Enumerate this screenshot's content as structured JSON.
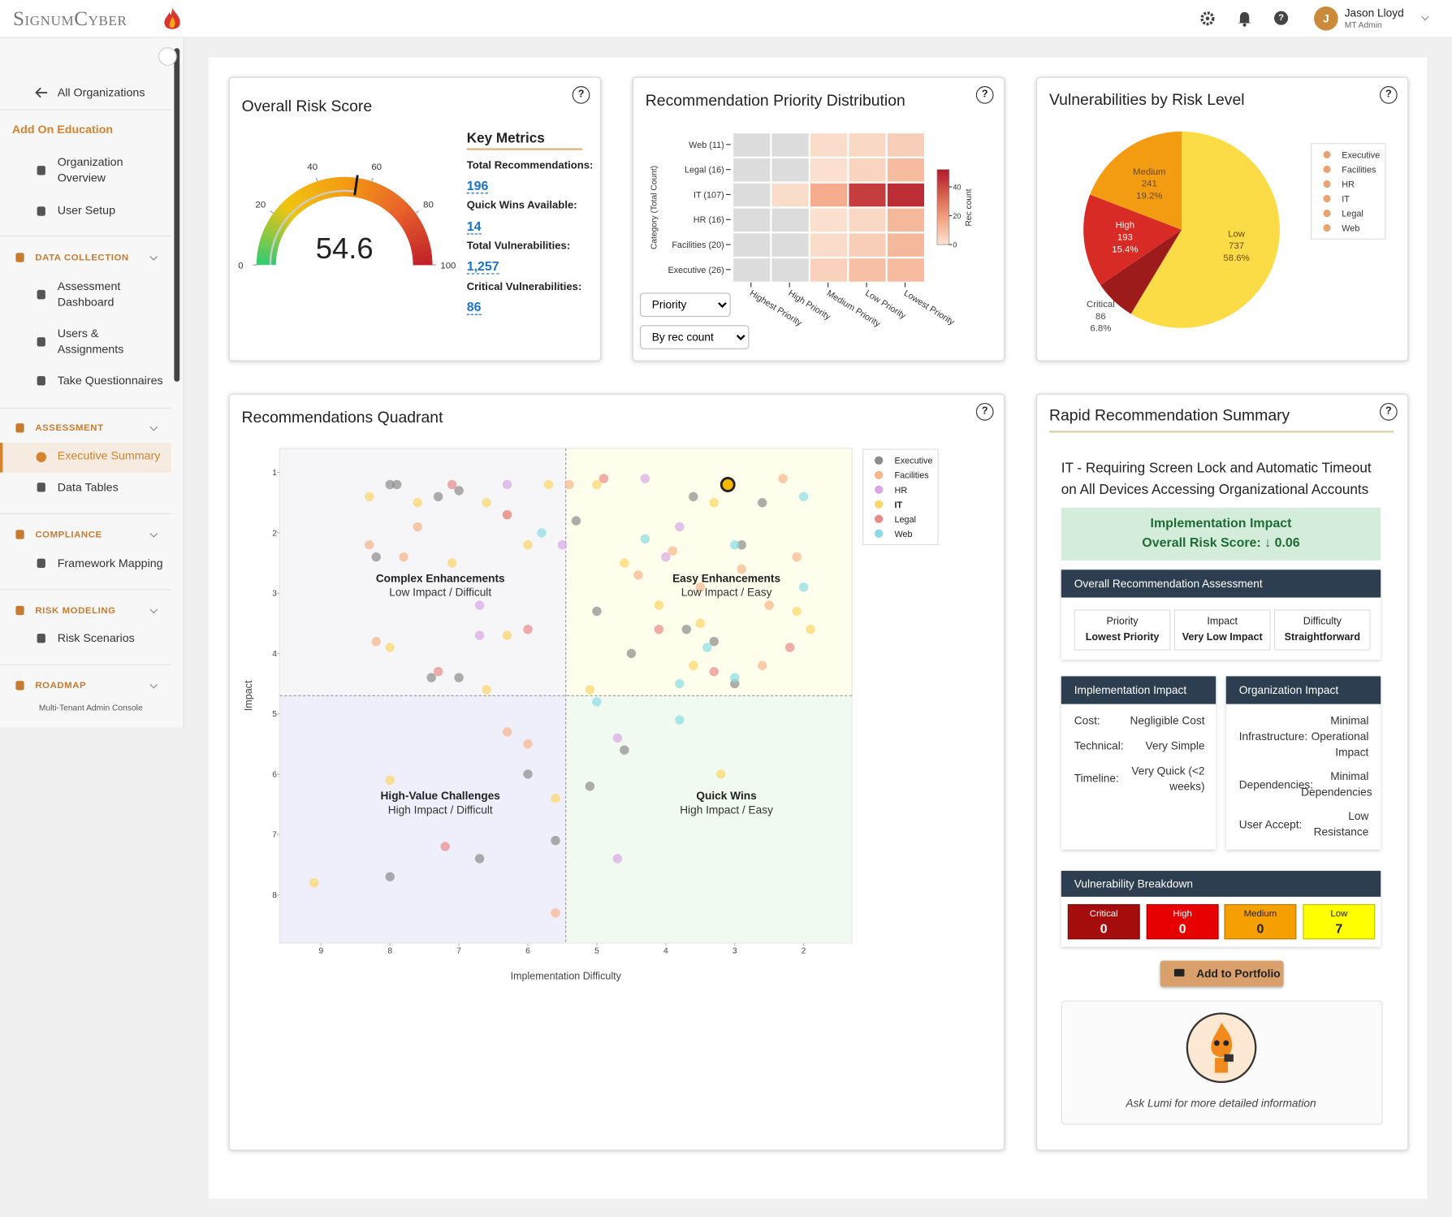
{
  "header": {
    "brand": "SignumCyber",
    "user_name": "Jason Lloyd",
    "user_role": "MT Admin",
    "avatar": "J"
  },
  "help": "?",
  "sidebar": {
    "back": "All Organizations",
    "org": "Add On Education",
    "org_items": [
      "Organization Overview",
      "User Setup"
    ],
    "sections": [
      {
        "title": "DATA COLLECTION",
        "items": [
          "Assessment Dashboard",
          "Users & Assignments",
          "Take Questionnaires"
        ]
      },
      {
        "title": "ASSESSMENT",
        "items": [
          "Executive Summary",
          "Data Tables"
        ]
      },
      {
        "title": "COMPLIANCE",
        "items": [
          "Framework Mapping"
        ]
      },
      {
        "title": "RISK MODELING",
        "items": [
          "Risk Scenarios"
        ]
      },
      {
        "title": "ROADMAP",
        "items": []
      }
    ],
    "footer": "Multi-Tenant Admin Console"
  },
  "risk_score": {
    "title": "Overall Risk Score",
    "chart": {
      "type": "gauge",
      "value": 54.6,
      "lim": [
        0,
        100
      ],
      "ticks": [
        0,
        20,
        40,
        60,
        80,
        100
      ],
      "colors": [
        "#2ecc71",
        "#f1c40f",
        "#f39c12",
        "#e8632a",
        "#c0202a"
      ]
    },
    "metrics_title": "Key Metrics",
    "metrics": [
      {
        "label": "Total Recommendations:",
        "value": 196
      },
      {
        "label": "Quick Wins Available:",
        "value": 14
      },
      {
        "label": "Total Vulnerabilities:",
        "value": "1,257"
      },
      {
        "label": "Critical Vulnerabilities:",
        "value": 86
      }
    ]
  },
  "priority": {
    "title": "Recommendation Priority Distribution",
    "controls": [
      "Priority",
      "By rec count"
    ],
    "chart": {
      "type": "heatmap",
      "rows": [
        "Web (11)",
        "Legal (16)",
        "IT (107)",
        "HR (16)",
        "Facilities (20)",
        "Executive (26)"
      ],
      "columns": [
        "Highest Priority",
        "High Priority",
        "Medium Priority",
        "Low Priority",
        "Lowest Priority"
      ],
      "values": [
        [
          0,
          0,
          2,
          3,
          6
        ],
        [
          0,
          0,
          1,
          4,
          11
        ],
        [
          0,
          2,
          15,
          43,
          47
        ],
        [
          0,
          0,
          1,
          3,
          12
        ],
        [
          0,
          0,
          2,
          6,
          12
        ],
        [
          0,
          0,
          5,
          10,
          11
        ]
      ],
      "ylabel": "Category (Total Count)",
      "colorbar_label": "Rec count",
      "clim": [
        0,
        52
      ],
      "cticks": [
        0,
        20,
        40
      ],
      "empty_color": "#dcdcdc",
      "colors": [
        "#fbe3d4",
        "#f4a582",
        "#d6604d",
        "#b2182b"
      ]
    }
  },
  "risk_level": {
    "title": "Vulnerabilities by Risk Level",
    "chart": {
      "type": "pie",
      "categories": [
        "Low",
        "Critical",
        "High",
        "Medium"
      ],
      "values": [
        737,
        86,
        193,
        241
      ],
      "percent_labels": [
        "58.6%",
        "6.8%",
        "15.4%",
        "19.2%"
      ],
      "colors": [
        "#fcdc46",
        "#9e1b1b",
        "#d92b26",
        "#f39c12"
      ],
      "legend": [
        "Executive",
        "Facilities",
        "HR",
        "IT",
        "Legal",
        "Web"
      ],
      "legend_color": "#e8a470"
    }
  },
  "quadrant": {
    "title": "Recommendations Quadrant",
    "chart": {
      "type": "scatter",
      "xlabel": "Implementation Difficulty",
      "ylabel": "Impact",
      "xlim": [
        9.6,
        1.3
      ],
      "ylim": [
        0.6,
        8.8
      ],
      "xticks": [
        9,
        8,
        7,
        6,
        5,
        4,
        3,
        2
      ],
      "yticks": [
        1,
        2,
        3,
        4,
        5,
        6,
        7,
        8
      ],
      "dividers": {
        "x": 5.45,
        "y": 4.7
      },
      "quadrants": [
        {
          "title": "Complex Enhancements",
          "subtitle": "Low Impact / Difficult",
          "color": "#f6f6f8"
        },
        {
          "title": "Easy Enhancements",
          "subtitle": "Low Impact / Easy",
          "color": "#fffdeb"
        },
        {
          "title": "High-Value Challenges",
          "subtitle": "High Impact / Difficult",
          "color": "#efeffb"
        },
        {
          "title": "Quick Wins",
          "subtitle": "High Impact / Easy",
          "color": "#f0faf0"
        }
      ],
      "highlight": {
        "series": 3,
        "index": 0,
        "color": "#f5b800"
      },
      "series": [
        {
          "name": "Executive",
          "color": "#8c8c8c",
          "x": [
            8.0,
            7.9,
            7.0,
            7.3,
            8.2,
            7.4,
            7.0,
            6.0,
            5.1,
            5.6,
            6.7,
            8.0,
            3.6,
            2.6,
            2.9,
            5.0,
            4.5,
            3.7,
            3.3,
            3.0,
            5.3,
            4.6
          ],
          "values": [
            1.2,
            1.2,
            1.3,
            1.4,
            2.4,
            4.4,
            4.4,
            6.0,
            6.2,
            7.1,
            7.4,
            7.7,
            1.4,
            1.5,
            2.2,
            3.3,
            4.0,
            3.6,
            3.8,
            4.5,
            1.8,
            5.6
          ]
        },
        {
          "name": "Facilities",
          "color": "#f7b58a",
          "x": [
            8.3,
            7.8,
            6.3,
            8.2,
            7.6,
            5.4,
            4.4,
            3.9,
            2.9,
            2.5,
            2.1,
            2.6,
            6.3,
            6.0,
            5.6,
            2.3,
            3.5
          ],
          "values": [
            2.2,
            2.4,
            1.7,
            3.8,
            1.9,
            1.2,
            2.7,
            2.3,
            2.6,
            3.2,
            2.4,
            4.2,
            5.3,
            5.5,
            8.3,
            1.1,
            2.9
          ]
        },
        {
          "name": "HR",
          "color": "#d9a6e6",
          "x": [
            6.3,
            4.3,
            6.7,
            6.7,
            5.5,
            4.0,
            4.7,
            4.7,
            3.8
          ],
          "values": [
            1.2,
            1.1,
            3.2,
            3.7,
            2.2,
            2.4,
            5.4,
            7.4,
            1.9
          ]
        },
        {
          "name": "IT",
          "color": "#fcd667",
          "x": [
            3.1,
            8.3,
            7.6,
            6.6,
            5.7,
            6.0,
            8.0,
            6.6,
            5.0,
            4.6,
            3.6,
            4.1,
            2.1,
            1.9,
            3.2,
            8.0,
            9.1,
            5.6,
            3.3,
            5.1,
            3.5,
            6.3,
            7.1
          ],
          "values": [
            1.2,
            1.4,
            1.5,
            1.5,
            1.2,
            2.2,
            3.9,
            4.6,
            1.2,
            2.5,
            4.2,
            3.2,
            3.3,
            3.6,
            6.0,
            6.1,
            7.8,
            6.4,
            1.5,
            4.6,
            3.5,
            3.7,
            2.5
          ]
        },
        {
          "name": "Legal",
          "color": "#e88a8a",
          "x": [
            7.1,
            6.3,
            6.0,
            7.3,
            7.2,
            4.9,
            4.1,
            3.3,
            2.2
          ],
          "values": [
            1.2,
            1.7,
            3.6,
            4.3,
            7.2,
            1.1,
            3.6,
            4.3,
            3.9
          ]
        },
        {
          "name": "Web",
          "color": "#8adbe6",
          "x": [
            5.8,
            2.0,
            2.0,
            4.3,
            3.4,
            3.0,
            3.8,
            3.8,
            5.0,
            3.0
          ],
          "values": [
            2.0,
            1.4,
            2.9,
            2.1,
            3.9,
            2.2,
            4.5,
            5.1,
            4.8,
            4.4
          ]
        }
      ]
    }
  },
  "summary": {
    "title": "Rapid Recommendation Summary",
    "recommendation": "IT - Requiring Screen Lock and Automatic Timeout on All Devices Accessing Organizational Accounts",
    "impact_title": "Implementation Impact",
    "risk_label": "Overall Risk Score:",
    "risk_arrow": "↓",
    "risk_value": "0.06",
    "assessment_title": "Overall Recommendation Assessment",
    "assessment": [
      {
        "label": "Priority",
        "value": "Lowest Priority"
      },
      {
        "label": "Impact",
        "value": "Very Low Impact"
      },
      {
        "label": "Difficulty",
        "value": "Straightforward"
      }
    ],
    "implementation": {
      "title": "Implementation Impact",
      "rows": [
        [
          "Cost:",
          "Negligible Cost"
        ],
        [
          "Technical:",
          "Very Simple"
        ],
        [
          "Timeline:",
          "Very Quick (<2 weeks)"
        ]
      ]
    },
    "organization": {
      "title": "Organization Impact",
      "rows": [
        [
          "Infrastructure:",
          "Minimal Operational Impact"
        ],
        [
          "Dependencies:",
          "Minimal Dependencies"
        ],
        [
          "User Accept:",
          "Low Resistance"
        ]
      ]
    },
    "breakdown": {
      "title": "Vulnerability Breakdown",
      "items": [
        {
          "label": "Critical",
          "value": 0
        },
        {
          "label": "High",
          "value": 0
        },
        {
          "label": "Medium",
          "value": 0
        },
        {
          "label": "Low",
          "value": 7
        }
      ]
    },
    "button": "Add to Portfolio",
    "lumi": "Ask Lumi for more detailed information"
  }
}
